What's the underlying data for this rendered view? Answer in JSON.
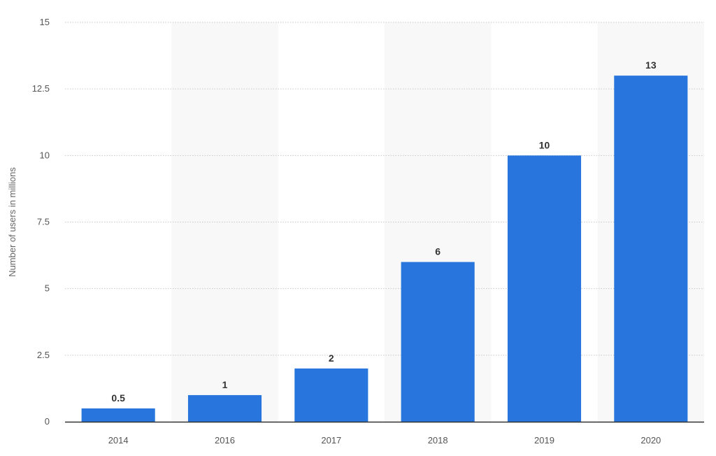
{
  "chart_data": {
    "type": "bar",
    "title": "",
    "xlabel": "",
    "ylabel": "Number of users in millions",
    "categories": [
      "2014",
      "2016",
      "2017",
      "2018",
      "2019",
      "2020"
    ],
    "values": [
      0.5,
      1,
      2,
      6,
      10,
      13
    ],
    "data_labels": [
      "0.5",
      "1",
      "2",
      "6",
      "10",
      "13"
    ],
    "ylim": [
      0,
      15
    ],
    "yticks": [
      0,
      2.5,
      5,
      7.5,
      10,
      12.5,
      15
    ],
    "ytick_labels": [
      "0",
      "2.5",
      "5",
      "7.5",
      "10",
      "12.5",
      "15"
    ],
    "grid": true,
    "legend": "none",
    "colors": {
      "bar": "#2876dd",
      "band": "#f8f8f8",
      "grid": "#c8c8c8",
      "axis": "#333333"
    }
  }
}
